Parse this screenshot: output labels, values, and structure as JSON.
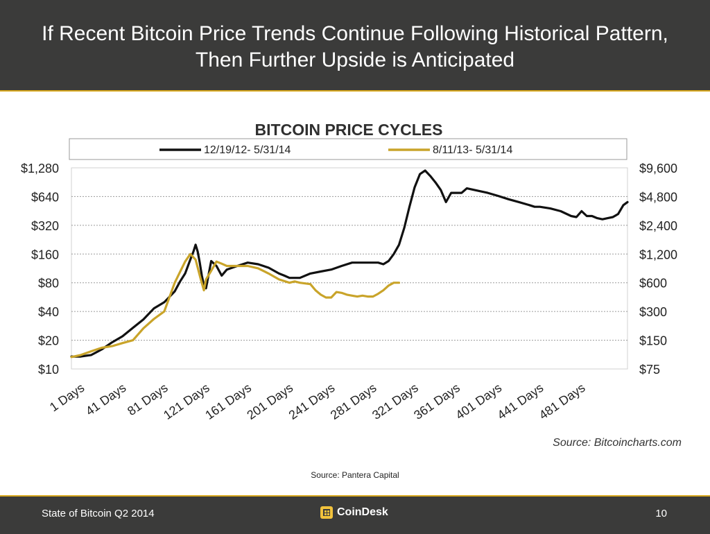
{
  "slide": {
    "title": "If Recent Bitcoin Price Trends Continue Following Historical Pattern, Then Further Upside is Anticipated",
    "source_note": "Source: Pantera Capital",
    "footer_left": "State of Bitcoin Q2 2014",
    "footer_logo_text": "CoinDesk",
    "page_number": "10"
  },
  "chart_data": {
    "type": "line",
    "title": "BITCOIN PRICE CYCLES",
    "source": "Source: Bitcoincharts.com",
    "y_scale": "log2",
    "left_axis": {
      "ticks": [
        "$10",
        "$20",
        "$40",
        "$80",
        "$160",
        "$320",
        "$640",
        "$1,280"
      ],
      "values": [
        10,
        20,
        40,
        80,
        160,
        320,
        640,
        1280
      ],
      "range": [
        10,
        1280
      ]
    },
    "right_axis": {
      "ticks": [
        "$75",
        "$150",
        "$300",
        "$600",
        "$1,200",
        "$2,400",
        "$4,800",
        "$9,600"
      ],
      "values": [
        75,
        150,
        300,
        600,
        1200,
        2400,
        4800,
        9600
      ],
      "range": [
        75,
        9600
      ]
    },
    "x_ticks": [
      "1 Days",
      "41 Days",
      "81 Days",
      "121 Days",
      "161 Days",
      "201 Days",
      "241 Days",
      "281 Days",
      "321 Days",
      "361 Days",
      "401 Days",
      "441 Days",
      "481 Days"
    ],
    "x_tick_values": [
      1,
      41,
      81,
      121,
      161,
      201,
      241,
      281,
      321,
      361,
      401,
      441,
      481
    ],
    "x_range": [
      1,
      534
    ],
    "grid": true,
    "legend_position": "top",
    "series": [
      {
        "name": "12/19/12- 5/31/14",
        "axis": "left",
        "color": "#111111",
        "x": [
          1,
          10,
          20,
          30,
          40,
          50,
          60,
          70,
          80,
          90,
          100,
          105,
          110,
          115,
          118,
          120,
          122,
          124,
          126,
          128,
          130,
          135,
          140,
          145,
          150,
          160,
          170,
          180,
          190,
          200,
          205,
          210,
          220,
          230,
          240,
          250,
          260,
          270,
          280,
          290,
          295,
          300,
          305,
          310,
          315,
          320,
          325,
          330,
          335,
          340,
          345,
          350,
          355,
          360,
          365,
          370,
          375,
          380,
          385,
          390,
          395,
          400,
          410,
          420,
          430,
          440,
          445,
          450,
          460,
          470,
          480,
          485,
          490,
          495,
          500,
          505,
          510,
          515,
          520,
          525,
          530,
          534
        ],
        "y": [
          13.5,
          13.5,
          14,
          16,
          19,
          22,
          27,
          33,
          43,
          50,
          65,
          82,
          100,
          140,
          170,
          200,
          170,
          130,
          95,
          75,
          70,
          135,
          120,
          95,
          110,
          120,
          130,
          125,
          115,
          100,
          95,
          90,
          90,
          100,
          105,
          110,
          120,
          130,
          130,
          130,
          130,
          125,
          135,
          160,
          200,
          300,
          500,
          800,
          1100,
          1200,
          1050,
          900,
          750,
          560,
          700,
          700,
          700,
          780,
          760,
          740,
          720,
          700,
          650,
          600,
          560,
          520,
          500,
          500,
          480,
          450,
          400,
          390,
          450,
          400,
          400,
          380,
          370,
          380,
          390,
          420,
          520,
          560
        ]
      },
      {
        "name": "8/11/13- 5/31/14",
        "axis": "right",
        "color": "#c9a42a",
        "x": [
          1,
          10,
          20,
          30,
          40,
          50,
          60,
          70,
          80,
          90,
          100,
          110,
          115,
          120,
          125,
          128,
          130,
          135,
          140,
          145,
          150,
          160,
          170,
          180,
          190,
          200,
          210,
          215,
          220,
          230,
          235,
          240,
          245,
          250,
          255,
          260,
          265,
          270,
          275,
          280,
          285,
          290,
          295,
          300,
          305,
          310,
          315
        ],
        "y": [
          100,
          105,
          115,
          125,
          130,
          140,
          150,
          200,
          250,
          300,
          600,
          1000,
          1200,
          1050,
          650,
          500,
          650,
          800,
          1000,
          950,
          900,
          900,
          900,
          850,
          750,
          650,
          600,
          620,
          600,
          580,
          500,
          450,
          420,
          420,
          480,
          470,
          450,
          440,
          430,
          440,
          430,
          430,
          460,
          500,
          560,
          600,
          600
        ]
      }
    ]
  }
}
